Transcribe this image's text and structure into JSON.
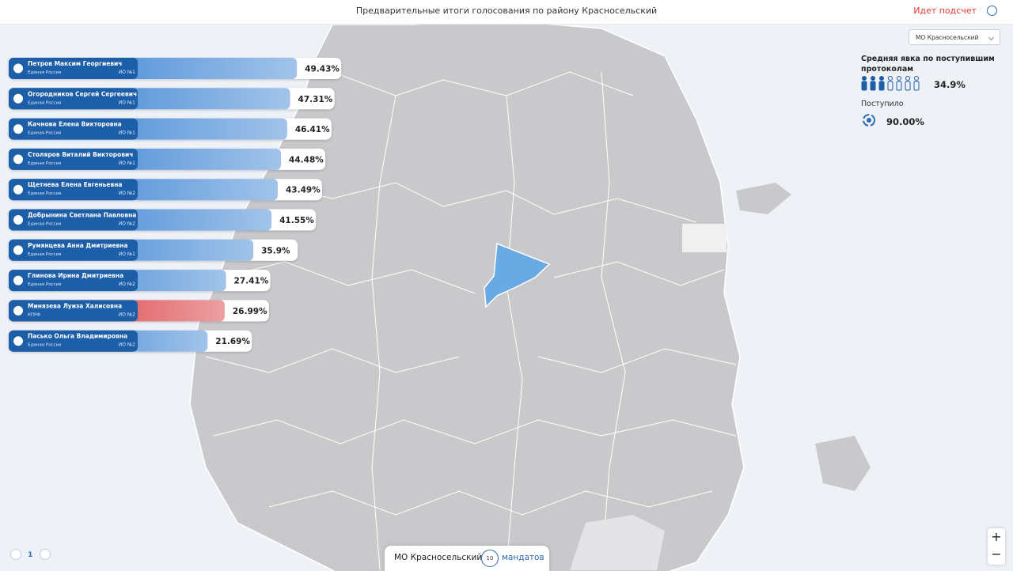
{
  "header": {
    "title": "Предварительные итоги голосования по району Красносельский",
    "status": "Идет подсчет"
  },
  "district_select": "МО Красносельский",
  "candidates": [
    {
      "name": "Петров Максим Георгиевич",
      "party": "Единая Россия",
      "district": "ИО №1",
      "value": 49.43,
      "value_label": "49.43%",
      "color": "#2f7bd0"
    },
    {
      "name": "Огородников Сергей Сергеевич",
      "party": "Единая Россия",
      "district": "ИО №1",
      "value": 47.31,
      "value_label": "47.31%",
      "color": "#2f7bd0"
    },
    {
      "name": "Качнова Елена Викторовна",
      "party": "Единая Россия",
      "district": "ИО №1",
      "value": 46.41,
      "value_label": "46.41%",
      "color": "#2f7bd0"
    },
    {
      "name": "Столяров Виталий Викторович",
      "party": "Единая Россия",
      "district": "ИО №1",
      "value": 44.48,
      "value_label": "44.48%",
      "color": "#2f7bd0"
    },
    {
      "name": "Щетнева Елена Евгеньевна",
      "party": "Единая Россия",
      "district": "ИО №2",
      "value": 43.49,
      "value_label": "43.49%",
      "color": "#2f7bd0"
    },
    {
      "name": "Добрынина Светлана Павловна",
      "party": "Единая Россия",
      "district": "ИО №2",
      "value": 41.55,
      "value_label": "41.55%",
      "color": "#2f7bd0"
    },
    {
      "name": "Румянцева Анна Дмитриевна",
      "party": "Единая Россия",
      "district": "ИО №1",
      "value": 35.9,
      "value_label": "35.9%",
      "color": "#2f7bd0"
    },
    {
      "name": "Глинова Ирина Дмитриевна",
      "party": "Единая Россия",
      "district": "ИО №2",
      "value": 27.41,
      "value_label": "27.41%",
      "color": "#2f7bd0"
    },
    {
      "name": "Минязева Луиза Халисовна",
      "party": "КПРФ",
      "district": "ИО №2",
      "value": 26.99,
      "value_label": "26.99%",
      "color": "#d62a2f"
    },
    {
      "name": "Пасько Ольга Владимировна",
      "party": "Единая Россия",
      "district": "ИО №2",
      "value": 21.69,
      "value_label": "21.69%",
      "color": "#2f7bd0"
    }
  ],
  "turnout": {
    "title": "Средняя явка по поступившим протоколам",
    "value": 34.9,
    "label": "34.9%"
  },
  "received": {
    "title": "Поступило",
    "value": 90.0,
    "label": "90.00%"
  },
  "pager": {
    "page": 1
  },
  "footer": {
    "district": "МО Красносельский",
    "mandates": 10,
    "mandates_label": "мандатов"
  }
}
